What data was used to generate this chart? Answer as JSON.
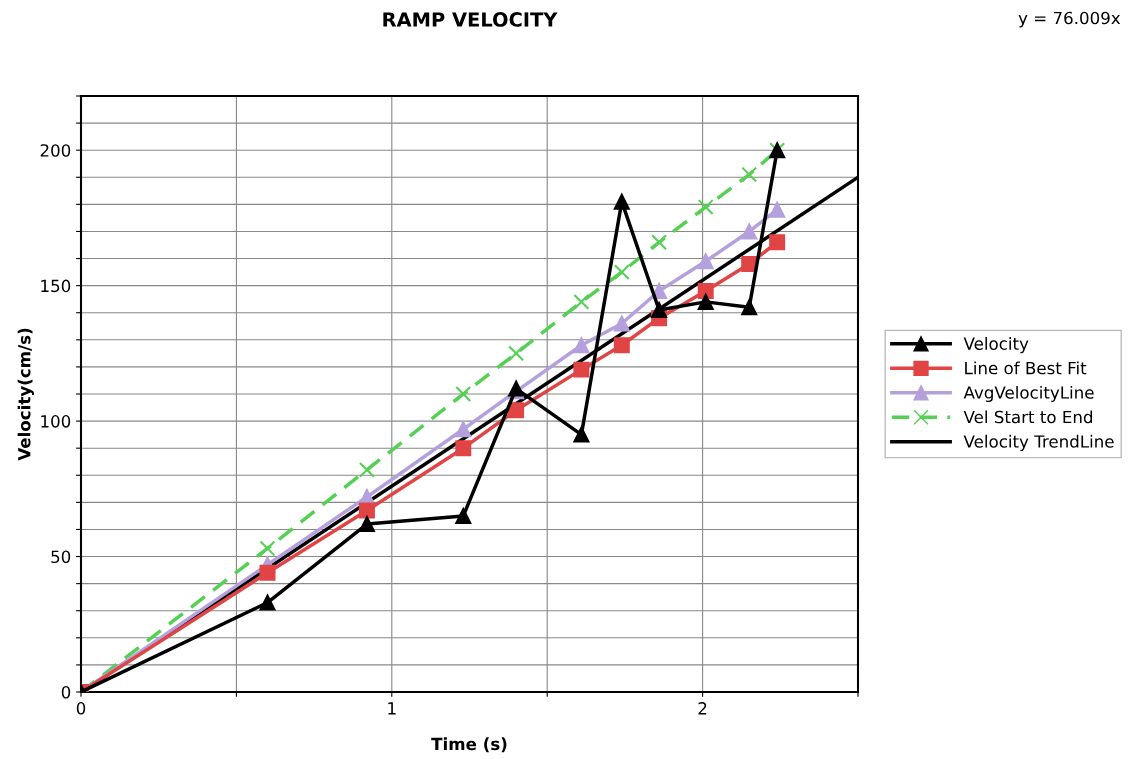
{
  "chart_data": {
    "type": "line",
    "title": "RAMP VELOCITY",
    "xlabel": "Time (s)",
    "ylabel": "Velocity(cm/s)",
    "annotations": [
      "y = 76.009x"
    ],
    "x": [
      0,
      0.6,
      0.92,
      1.23,
      1.4,
      1.61,
      1.74,
      1.86,
      2.01,
      2.15,
      2.24
    ],
    "xlim": [
      0,
      2.5
    ],
    "xticks": [
      0,
      {
        "value": 0.5,
        "label": null
      },
      1,
      {
        "value": 1.5,
        "label": null
      },
      2,
      {
        "value": 2.5,
        "label": null
      }
    ],
    "ylim": [
      0,
      220
    ],
    "yticks": [
      0,
      {
        "value": 10,
        "label": null
      },
      {
        "value": 20,
        "label": null
      },
      {
        "value": 30,
        "label": null
      },
      {
        "value": 40,
        "label": null
      },
      50,
      {
        "value": 60,
        "label": null
      },
      {
        "value": 70,
        "label": null
      },
      {
        "value": 80,
        "label": null
      },
      {
        "value": 90,
        "label": null
      },
      100,
      {
        "value": 110,
        "label": null
      },
      {
        "value": 120,
        "label": null
      },
      {
        "value": 130,
        "label": null
      },
      {
        "value": 140,
        "label": null
      },
      150,
      {
        "value": 160,
        "label": null
      },
      {
        "value": 170,
        "label": null
      },
      {
        "value": 180,
        "label": null
      },
      {
        "value": 190,
        "label": null
      },
      200,
      {
        "value": 210,
        "label": null
      },
      {
        "value": 220,
        "label": null
      }
    ],
    "grid": true,
    "legend": "right",
    "series": [
      {
        "name": "Velocity",
        "color": "#000000",
        "marker": "triangle",
        "values": [
          0,
          33,
          62,
          65,
          112,
          95,
          181,
          141,
          144,
          142,
          200
        ]
      },
      {
        "name": "Line of Best Fit",
        "color": "#e04444",
        "marker": "square",
        "values": [
          0,
          44,
          67,
          90,
          104,
          119,
          128,
          138,
          148,
          158,
          166
        ]
      },
      {
        "name": "AvgVelocityLine",
        "color": "#b4a0dc",
        "marker": "triangle",
        "values": [
          0,
          47,
          72,
          97,
          111,
          128,
          136,
          148,
          159,
          170,
          178
        ]
      },
      {
        "name": "Vel Start to End",
        "color": "#55d055",
        "marker": "cross",
        "line_style": "dashed",
        "values": [
          0,
          53,
          82,
          110,
          125,
          144,
          155,
          166,
          179,
          191,
          200
        ]
      },
      {
        "name": "Velocity TrendLine",
        "color": "#000000",
        "marker": "none",
        "x": [
          0,
          2.5
        ],
        "values": [
          0,
          190
        ]
      }
    ]
  }
}
